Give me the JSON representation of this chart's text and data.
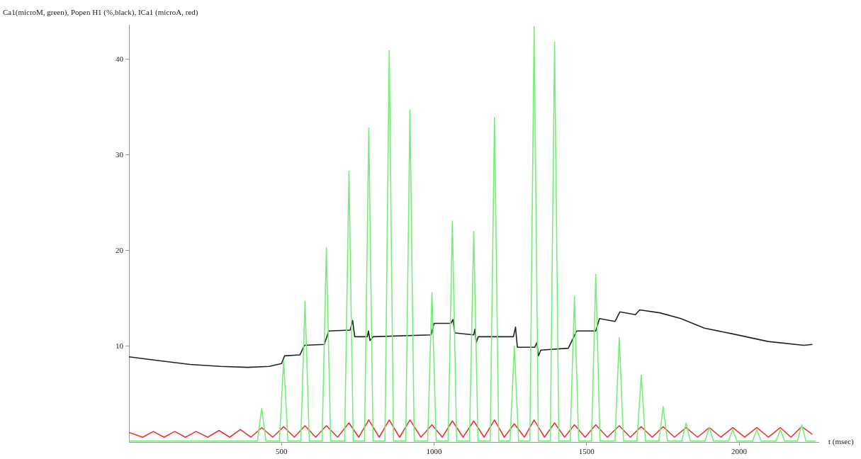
{
  "chart_data": {
    "type": "line",
    "title": "Ca1(microM, green), Popen H1 (%,black), ICa1 (microA, red)",
    "xlabel": "t (msec)",
    "xlim": [
      0,
      2260
    ],
    "xticks": [
      500,
      1000,
      1500,
      2000
    ],
    "ylim": [
      0,
      43.6
    ],
    "yticks": [
      10,
      20,
      30,
      40
    ],
    "grid": false,
    "legend": false,
    "marker": "none",
    "line_style": "solid",
    "series": [
      {
        "color": "#77ee77",
        "x": [
          0,
          421,
          435,
          449,
          493,
          507,
          521,
          563,
          577,
          591,
          633,
          647,
          661,
          707,
          721,
          735,
          772,
          786,
          800,
          839,
          853,
          867,
          907,
          921,
          935,
          979,
          993,
          1007,
          1046,
          1060,
          1074,
          1116,
          1130,
          1144,
          1184,
          1198,
          1212,
          1249,
          1263,
          1277,
          1314,
          1328,
          1342,
          1381,
          1395,
          1409,
          1446,
          1460,
          1474,
          1516,
          1530,
          1544,
          1593,
          1607,
          1621,
          1665,
          1679,
          1693,
          1737,
          1751,
          1765,
          1812,
          1826,
          1840,
          1888,
          1902,
          1916,
          1965,
          1979,
          1993,
          2044,
          2058,
          2072,
          2121,
          2135,
          2149,
          2191,
          2205,
          2219,
          2250
        ],
        "values": [
          0.1,
          0.1,
          3.5,
          0.1,
          0.1,
          8.5,
          0.1,
          0.1,
          14.7,
          0.1,
          0.1,
          20.3,
          0.1,
          0.1,
          28.3,
          0.1,
          0.1,
          32.8,
          0.1,
          0.1,
          40.9,
          0.1,
          0.1,
          34.7,
          0.1,
          0.1,
          15.6,
          0.1,
          0.1,
          23.1,
          0.1,
          0.1,
          22.0,
          0.1,
          0.1,
          33.9,
          0.1,
          0.1,
          10.0,
          0.1,
          0.1,
          43.4,
          0.1,
          0.1,
          41.8,
          0.1,
          0.1,
          15.2,
          0.1,
          0.1,
          17.5,
          0.1,
          0.1,
          10.9,
          0.1,
          0.1,
          7.0,
          0.1,
          0.1,
          3.7,
          0.1,
          0.1,
          2.0,
          0.1,
          0.1,
          1.5,
          0.1,
          0.1,
          1.3,
          0.1,
          0.1,
          1.3,
          0.1,
          0.1,
          1.3,
          0.1,
          0.1,
          1.8,
          0.1,
          0.1
        ]
      },
      {
        "color": "#ee3333",
        "x": [
          0,
          45,
          80,
          115,
          150,
          185,
          220,
          258,
          295,
          330,
          365,
          400,
          435,
          471,
          507,
          542,
          577,
          612,
          647,
          684,
          721,
          753,
          786,
          820,
          853,
          887,
          921,
          957,
          993,
          1027,
          1060,
          1095,
          1130,
          1164,
          1198,
          1230,
          1263,
          1296,
          1328,
          1362,
          1395,
          1428,
          1460,
          1495,
          1530,
          1568,
          1607,
          1643,
          1679,
          1715,
          1751,
          1788,
          1826,
          1864,
          1902,
          1940,
          1979,
          2018,
          2058,
          2096,
          2135,
          2170,
          2205,
          2240
        ],
        "values": [
          1.0,
          0.5,
          1.1,
          0.5,
          1.1,
          0.5,
          1.1,
          0.5,
          1.2,
          0.5,
          1.3,
          0.5,
          1.5,
          0.5,
          1.6,
          0.5,
          1.7,
          0.5,
          1.7,
          0.5,
          2.0,
          0.5,
          2.3,
          0.5,
          2.3,
          0.5,
          2.3,
          0.5,
          1.8,
          0.5,
          2.2,
          0.5,
          2.2,
          0.5,
          2.3,
          0.5,
          1.9,
          0.5,
          2.3,
          0.5,
          2.0,
          0.5,
          1.8,
          0.5,
          1.8,
          0.5,
          1.7,
          0.5,
          1.6,
          0.5,
          1.6,
          0.5,
          1.5,
          0.5,
          1.5,
          0.5,
          1.5,
          0.5,
          1.5,
          0.5,
          1.5,
          0.5,
          1.6,
          0.8
        ]
      },
      {
        "color": "#222222",
        "x": [
          0,
          100,
          200,
          300,
          390,
          460,
          500,
          510,
          560,
          575,
          640,
          655,
          725,
          733,
          740,
          781,
          785,
          790,
          800,
          990,
          1000,
          1055,
          1062,
          1068,
          1130,
          1134,
          1138,
          1145,
          1260,
          1267,
          1273,
          1330,
          1337,
          1342,
          1350,
          1440,
          1467,
          1530,
          1542,
          1593,
          1609,
          1660,
          1674,
          1740,
          1809,
          1886,
          1979,
          2095,
          2212,
          2240
        ],
        "values": [
          8.9,
          8.5,
          8.1,
          7.9,
          7.8,
          7.9,
          8.2,
          9.0,
          9.1,
          10.1,
          10.2,
          11.6,
          11.7,
          12.7,
          11.0,
          11.0,
          11.6,
          10.6,
          11.0,
          11.2,
          12.4,
          12.4,
          12.8,
          11.4,
          11.2,
          11.8,
          10.4,
          11.0,
          11.0,
          12.0,
          9.9,
          9.9,
          10.4,
          9.0,
          9.6,
          9.8,
          11.6,
          11.6,
          12.9,
          12.6,
          13.6,
          13.3,
          13.8,
          13.5,
          12.9,
          11.9,
          11.3,
          10.5,
          10.1,
          10.2
        ]
      }
    ]
  }
}
